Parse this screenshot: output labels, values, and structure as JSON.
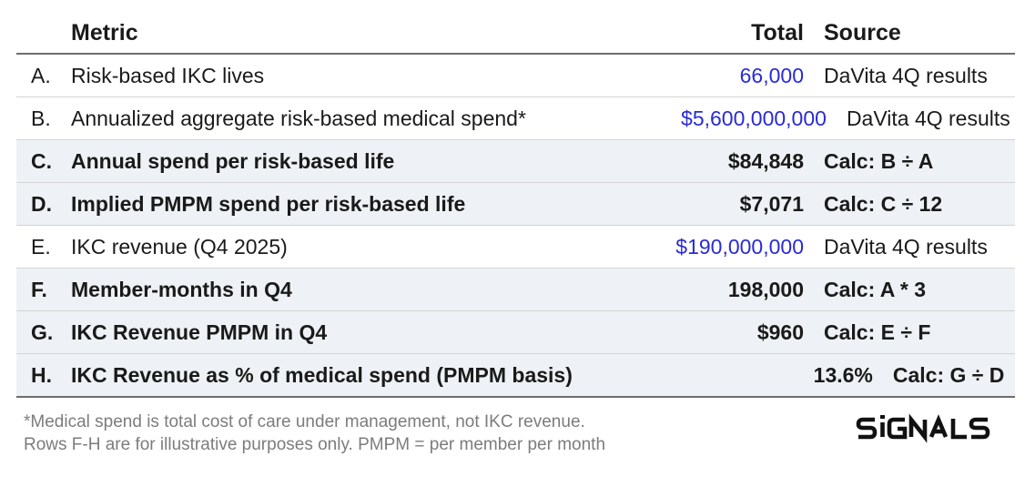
{
  "header": {
    "metric": "Metric",
    "total": "Total",
    "source": "Source"
  },
  "rows": [
    {
      "letter": "A.",
      "metric": "Risk-based IKC lives",
      "total": "66,000",
      "source": "DaVita 4Q results",
      "bold": false,
      "total_color": "#2a2ad6"
    },
    {
      "letter": "B.",
      "metric": "Annualized aggregate risk-based medical spend*",
      "total": "$5,600,000,000",
      "source": "DaVita 4Q results",
      "bold": false,
      "total_color": "#2a2ad6"
    },
    {
      "letter": "C.",
      "metric": "Annual spend per risk-based life",
      "total": "$84,848",
      "source": "Calc: B ÷ A",
      "bold": true,
      "total_color": "#1a1a1a"
    },
    {
      "letter": "D.",
      "metric": "Implied PMPM spend per risk-based life",
      "total": "$7,071",
      "source": "Calc: C ÷ 12",
      "bold": true,
      "total_color": "#1a1a1a"
    },
    {
      "letter": "E.",
      "metric": "IKC revenue (Q4 2025)",
      "total": "$190,000,000",
      "source": "DaVita 4Q results",
      "bold": false,
      "total_color": "#2a2ad6"
    },
    {
      "letter": "F.",
      "metric": "Member-months in Q4",
      "total": "198,000",
      "source": "Calc: A * 3",
      "bold": true,
      "total_color": "#1a1a1a"
    },
    {
      "letter": "G.",
      "metric": "IKC Revenue PMPM in Q4",
      "total": "$960",
      "source": "Calc: E ÷ F",
      "bold": true,
      "total_color": "#1a1a1a"
    },
    {
      "letter": "H.",
      "metric": "IKC Revenue as % of medical spend (PMPM basis)",
      "total": "13.6%",
      "source": "Calc: G ÷ D",
      "bold": true,
      "total_color": "#1a1a1a"
    }
  ],
  "footnote": {
    "line1": "*Medical spend is total cost of care under management, not IKC revenue.",
    "line2": "Rows F-H are for illustrative purposes only. PMPM = per member per month"
  },
  "logo": {
    "text": "SIGNALS"
  }
}
